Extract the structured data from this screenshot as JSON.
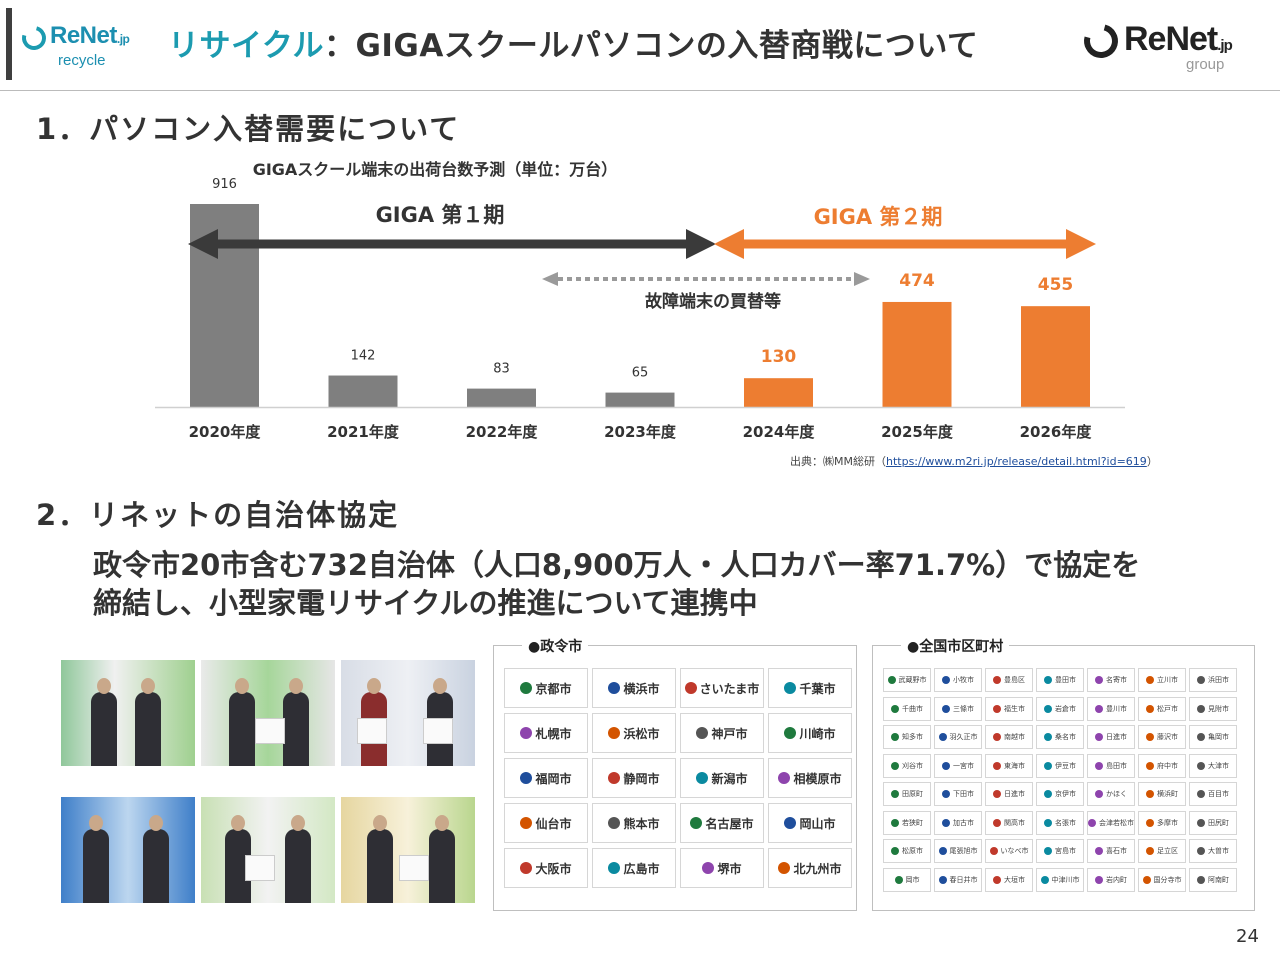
{
  "header": {
    "logo_left": {
      "name": "ReNet",
      "jp": ".jp",
      "sub": "recycle"
    },
    "title_accent": "リサイクル",
    "title_rest": "：GIGAスクールパソコンの入替商戦について",
    "logo_right": {
      "name": "ReNet",
      "jp": ".jp",
      "sub": "group"
    }
  },
  "section1": {
    "heading": "1．パソコン入替需要について"
  },
  "chart_data": {
    "type": "bar",
    "title": "GIGAスクール端末の出荷台数予測（単位：万台）",
    "categories": [
      "2020年度",
      "2021年度",
      "2022年度",
      "2023年度",
      "2024年度",
      "2025年度",
      "2026年度"
    ],
    "values": [
      916,
      142,
      83,
      65,
      130,
      474,
      455
    ],
    "colors": [
      "#7f7f7f",
      "#7f7f7f",
      "#7f7f7f",
      "#7f7f7f",
      "#ed7d31",
      "#ed7d31",
      "#ed7d31"
    ],
    "ylim": [
      0,
      916
    ],
    "grid": false,
    "annotations": {
      "phase1": "GIGA 第１期",
      "phase2": "GIGA 第２期",
      "replacement": "故障端末の買替等"
    }
  },
  "source": {
    "prefix": "出典：㈱MM総研（",
    "url": "https://www.m2ri.jp/release/detail.html?id=619",
    "suffix": "）"
  },
  "section2": {
    "heading": "2．リネットの自治体協定",
    "line1": "政令市20市含む732自治体（人口8,900万人・人口カバー率71.7%）で協定を",
    "line2": "締結し、小型家電リサイクルの推進について連携中"
  },
  "designated_cities": {
    "label": "●政令市",
    "cities": [
      "京都市",
      "横浜市",
      "さいたま市",
      "千葉市",
      "札幌市",
      "浜松市",
      "神戸市",
      "川崎市",
      "福岡市",
      "静岡市",
      "新潟市",
      "相模原市",
      "仙台市",
      "熊本市",
      "名古屋市",
      "岡山市",
      "大阪市",
      "広島市",
      "堺市",
      "北九州市"
    ]
  },
  "municipalities": {
    "label": "●全国市区町村",
    "items": [
      "武蔵野市",
      "小牧市",
      "豊島区",
      "豊田市",
      "名寄市",
      "立川市",
      "浜田市",
      "千曲市",
      "三條市",
      "福生市",
      "岩倉市",
      "豊川市",
      "松戸市",
      "見附市",
      "知多市",
      "羽久正市",
      "南越市",
      "桑名市",
      "日進市",
      "藤沢市",
      "亀岡市",
      "刈谷市",
      "一宮市",
      "東海市",
      "伊豆市",
      "島田市",
      "府中市",
      "大津市",
      "田原町",
      "下田市",
      "日進市",
      "京伊市",
      "かほく",
      "横浜町",
      "百目市",
      "若狭町",
      "加古市",
      "関高市",
      "名張市",
      "会津若松市",
      "多摩市",
      "田尻町",
      "松原市",
      "尾張旭市",
      "いなべ市",
      "宮島市",
      "喜石市",
      "足立区",
      "大曽市",
      "岡市",
      "春日井市",
      "大垣市",
      "中津川市",
      "岩内町",
      "国分寺市",
      "阿南町"
    ]
  },
  "page_number": "24"
}
